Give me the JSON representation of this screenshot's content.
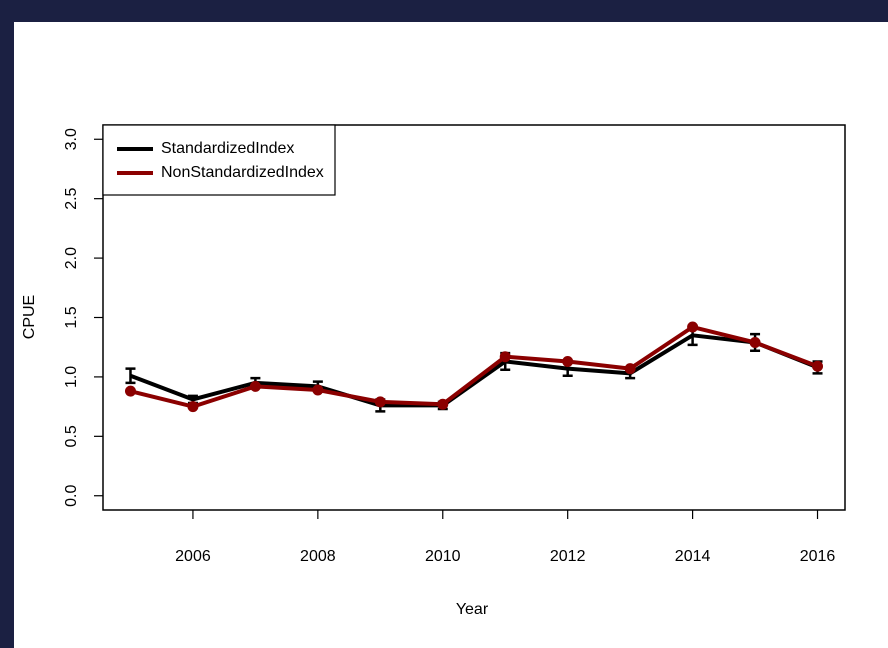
{
  "chart_data": {
    "type": "line",
    "x_label": "Year",
    "y_label": "CPUE",
    "x": [
      2005,
      2006,
      2007,
      2008,
      2009,
      2010,
      2011,
      2012,
      2013,
      2014,
      2015,
      2016
    ],
    "series": [
      {
        "name": "StandardizedIndex",
        "color": "#000000",
        "values": [
          1.01,
          0.81,
          0.95,
          0.92,
          0.76,
          0.76,
          1.13,
          1.07,
          1.03,
          1.35,
          1.29,
          1.08
        ],
        "errors": [
          0.06,
          0.03,
          0.04,
          0.04,
          0.05,
          0.03,
          0.07,
          0.06,
          0.04,
          0.08,
          0.07,
          0.05
        ]
      },
      {
        "name": "NonStandardizedIndex",
        "color": "#8b0000",
        "values": [
          0.88,
          0.75,
          0.92,
          0.89,
          0.79,
          0.77,
          1.17,
          1.13,
          1.07,
          1.42,
          1.29,
          1.09
        ]
      }
    ],
    "xlim": [
      2004.56,
      2016.44
    ],
    "xticks": [
      2006,
      2008,
      2010,
      2012,
      2014,
      2016
    ],
    "ylim": [
      -0.12,
      3.12
    ],
    "yticks": [
      {
        "value": 0,
        "label": "0.0"
      },
      {
        "value": 0.5,
        "label": "0.5"
      },
      {
        "value": 1,
        "label": "1.0"
      },
      {
        "value": 1.5,
        "label": "1.5"
      },
      {
        "value": 2,
        "label": "2.0"
      },
      {
        "value": 2.5,
        "label": "2.5"
      },
      {
        "value": 3,
        "label": "3.0"
      }
    ],
    "grid": false,
    "legend": "top-left"
  }
}
